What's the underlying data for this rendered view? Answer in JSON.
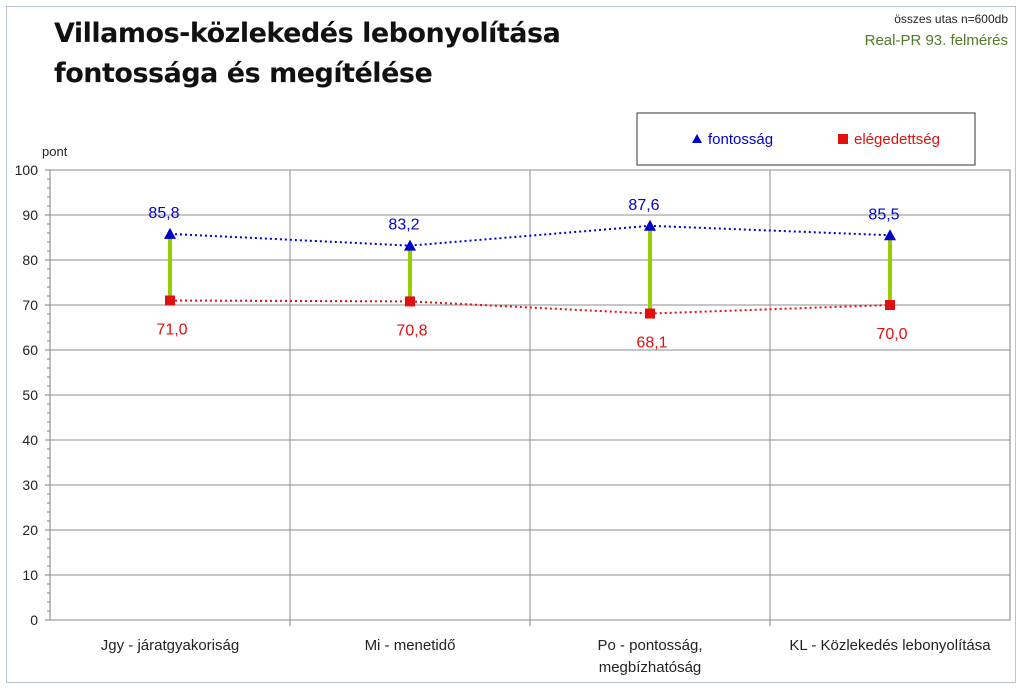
{
  "header": {
    "title": "Villamos-közlekedés lebonyolítása\nfontossága és megítélése",
    "sample_note": "összes utas n=600db",
    "source_note": "Real-PR 93. felmérés"
  },
  "chart_data": {
    "type": "line",
    "ylabel": "pont",
    "ylim": [
      0,
      100
    ],
    "yticks": [
      0,
      10,
      20,
      30,
      40,
      50,
      60,
      70,
      80,
      90,
      100
    ],
    "categories": [
      [
        "Jgy - járatgyakoriság"
      ],
      [
        "Mi - menetidő"
      ],
      [
        "Po - pontosság,",
        "megbízhatóság"
      ],
      [
        "KL - Közlekedés lebonyolítása"
      ]
    ],
    "series": [
      {
        "name": "fontosság",
        "marker": "triangle",
        "color": "#0000cc",
        "values": [
          85.8,
          83.2,
          87.6,
          85.5
        ],
        "labels": [
          "85,8",
          "83,2",
          "87,6",
          "85,5"
        ]
      },
      {
        "name": "elégedettség",
        "marker": "square",
        "color": "#e01010",
        "values": [
          71.0,
          70.8,
          68.1,
          70.0
        ],
        "labels": [
          "71,0",
          "70,8",
          "68,1",
          "70,0"
        ]
      }
    ],
    "gap_line_color": "#99cc00",
    "grid": true,
    "legend_position": "top-right"
  }
}
